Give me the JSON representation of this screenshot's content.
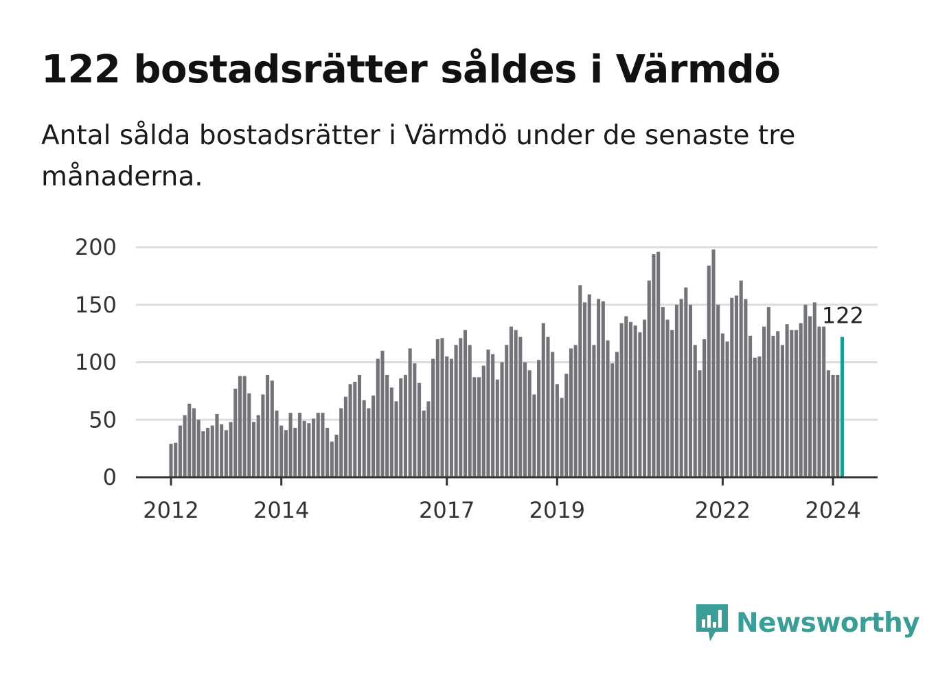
{
  "title": "122 bostadsrätter såldes i Värmdö",
  "subtitle": "Antal sålda bostadsrätter i Värmdö under de senaste tre månaderna.",
  "logo_text": "Newsworthy",
  "colors": {
    "bar": "#747379",
    "highlight": "#1a9c93",
    "grid": "#dddddd",
    "axis": "#333333",
    "logo": "#3a9e96"
  },
  "chart_data": {
    "type": "bar",
    "start": "2012-01",
    "ylim": [
      0,
      200
    ],
    "yticks": [
      "0",
      "50",
      "100",
      "150",
      "200"
    ],
    "xticks": [
      {
        "label": "2012",
        "date": "2012-01"
      },
      {
        "label": "2014",
        "date": "2014-01"
      },
      {
        "label": "2017",
        "date": "2017-01"
      },
      {
        "label": "2019",
        "date": "2019-01"
      },
      {
        "label": "2022",
        "date": "2022-01"
      },
      {
        "label": "2024",
        "date": "2024-01"
      }
    ],
    "values": [
      29,
      30,
      45,
      54,
      64,
      60,
      50,
      40,
      43,
      45,
      55,
      46,
      41,
      48,
      77,
      88,
      88,
      73,
      48,
      54,
      72,
      89,
      84,
      58,
      45,
      41,
      56,
      43,
      56,
      49,
      47,
      51,
      56,
      56,
      43,
      31,
      37,
      60,
      70,
      81,
      83,
      89,
      67,
      60,
      71,
      103,
      110,
      89,
      78,
      66,
      86,
      89,
      112,
      99,
      82,
      58,
      66,
      103,
      120,
      121,
      105,
      103,
      115,
      121,
      128,
      115,
      87,
      87,
      97,
      111,
      107,
      85,
      100,
      115,
      131,
      128,
      122,
      100,
      93,
      72,
      102,
      134,
      122,
      109,
      81,
      69,
      90,
      112,
      115,
      167,
      152,
      159,
      115,
      155,
      153,
      119,
      99,
      109,
      134,
      140,
      135,
      132,
      126,
      137,
      171,
      194,
      196,
      148,
      137,
      128,
      150,
      155,
      165,
      150,
      115,
      93,
      120,
      184,
      198,
      150,
      125,
      118,
      156,
      158,
      171,
      155,
      123,
      104,
      105,
      131,
      148,
      123,
      127,
      115,
      133,
      128,
      128,
      134,
      150,
      140,
      152,
      131,
      131,
      93,
      89,
      89,
      122
    ],
    "highlight_label": "122"
  }
}
